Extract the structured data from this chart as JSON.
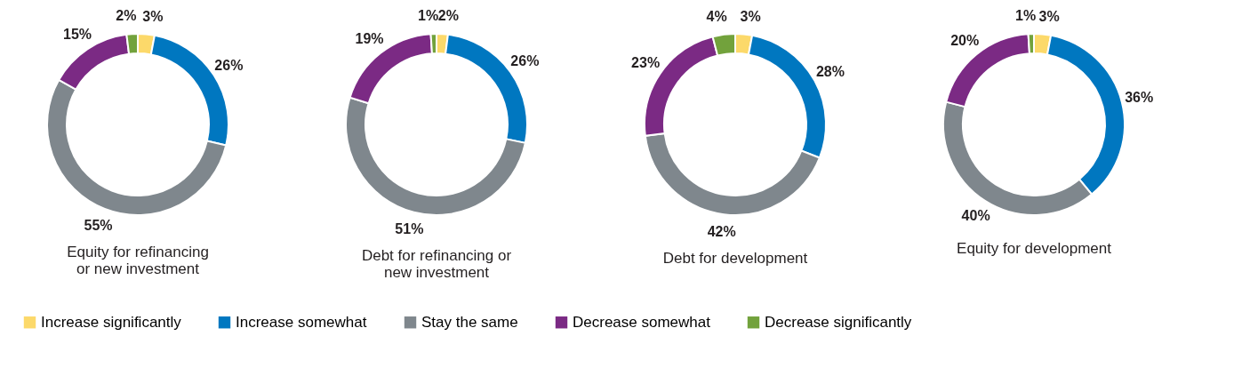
{
  "chart_data": [
    {
      "type": "donut",
      "title": "Equity for refinancing or new investment",
      "categories": [
        "Increase significantly",
        "Increase somewhat",
        "Stay the same",
        "Decrease somewhat",
        "Decrease significantly"
      ],
      "values": [
        3,
        26,
        55,
        15,
        2
      ],
      "value_labels": [
        "3%",
        "26%",
        "55%",
        "15%",
        "2%"
      ],
      "colors": [
        "#fcd96a",
        "#0077c0",
        "#7f878d",
        "#7b2a84",
        "#72a23c"
      ],
      "legend": "bottom"
    },
    {
      "type": "donut",
      "title": "Debt for refinancing or new investment",
      "categories": [
        null,
        null,
        null,
        null,
        null
      ],
      "values": [
        2,
        26,
        51,
        19,
        1
      ],
      "value_labels": [
        "2%",
        "26%",
        "51%",
        "19%",
        "1%"
      ],
      "colors": [
        "#fcd96a",
        "#0077c0",
        "#7f878d",
        "#7b2a84",
        "#72a23c"
      ]
    },
    {
      "type": "donut",
      "title": "Debt for development",
      "categories": [
        null,
        null,
        null,
        null,
        null
      ],
      "values": [
        3,
        28,
        42,
        23,
        4
      ],
      "value_labels": [
        "3%",
        "28%",
        "42%",
        "23%",
        "4%"
      ],
      "colors": [
        "#fcd96a",
        "#0077c0",
        "#7f878d",
        "#7b2a84",
        "#72a23c"
      ]
    },
    {
      "type": "donut",
      "title": "Equity for development",
      "categories": [
        null,
        null,
        null,
        null,
        null
      ],
      "values": [
        3,
        36,
        40,
        20,
        1
      ],
      "value_labels": [
        "3%",
        "36%",
        "40%",
        "20%",
        "1%"
      ],
      "colors": [
        "#fcd96a",
        "#0077c0",
        "#7f878d",
        "#7b2a84",
        "#72a23c"
      ]
    }
  ]
}
